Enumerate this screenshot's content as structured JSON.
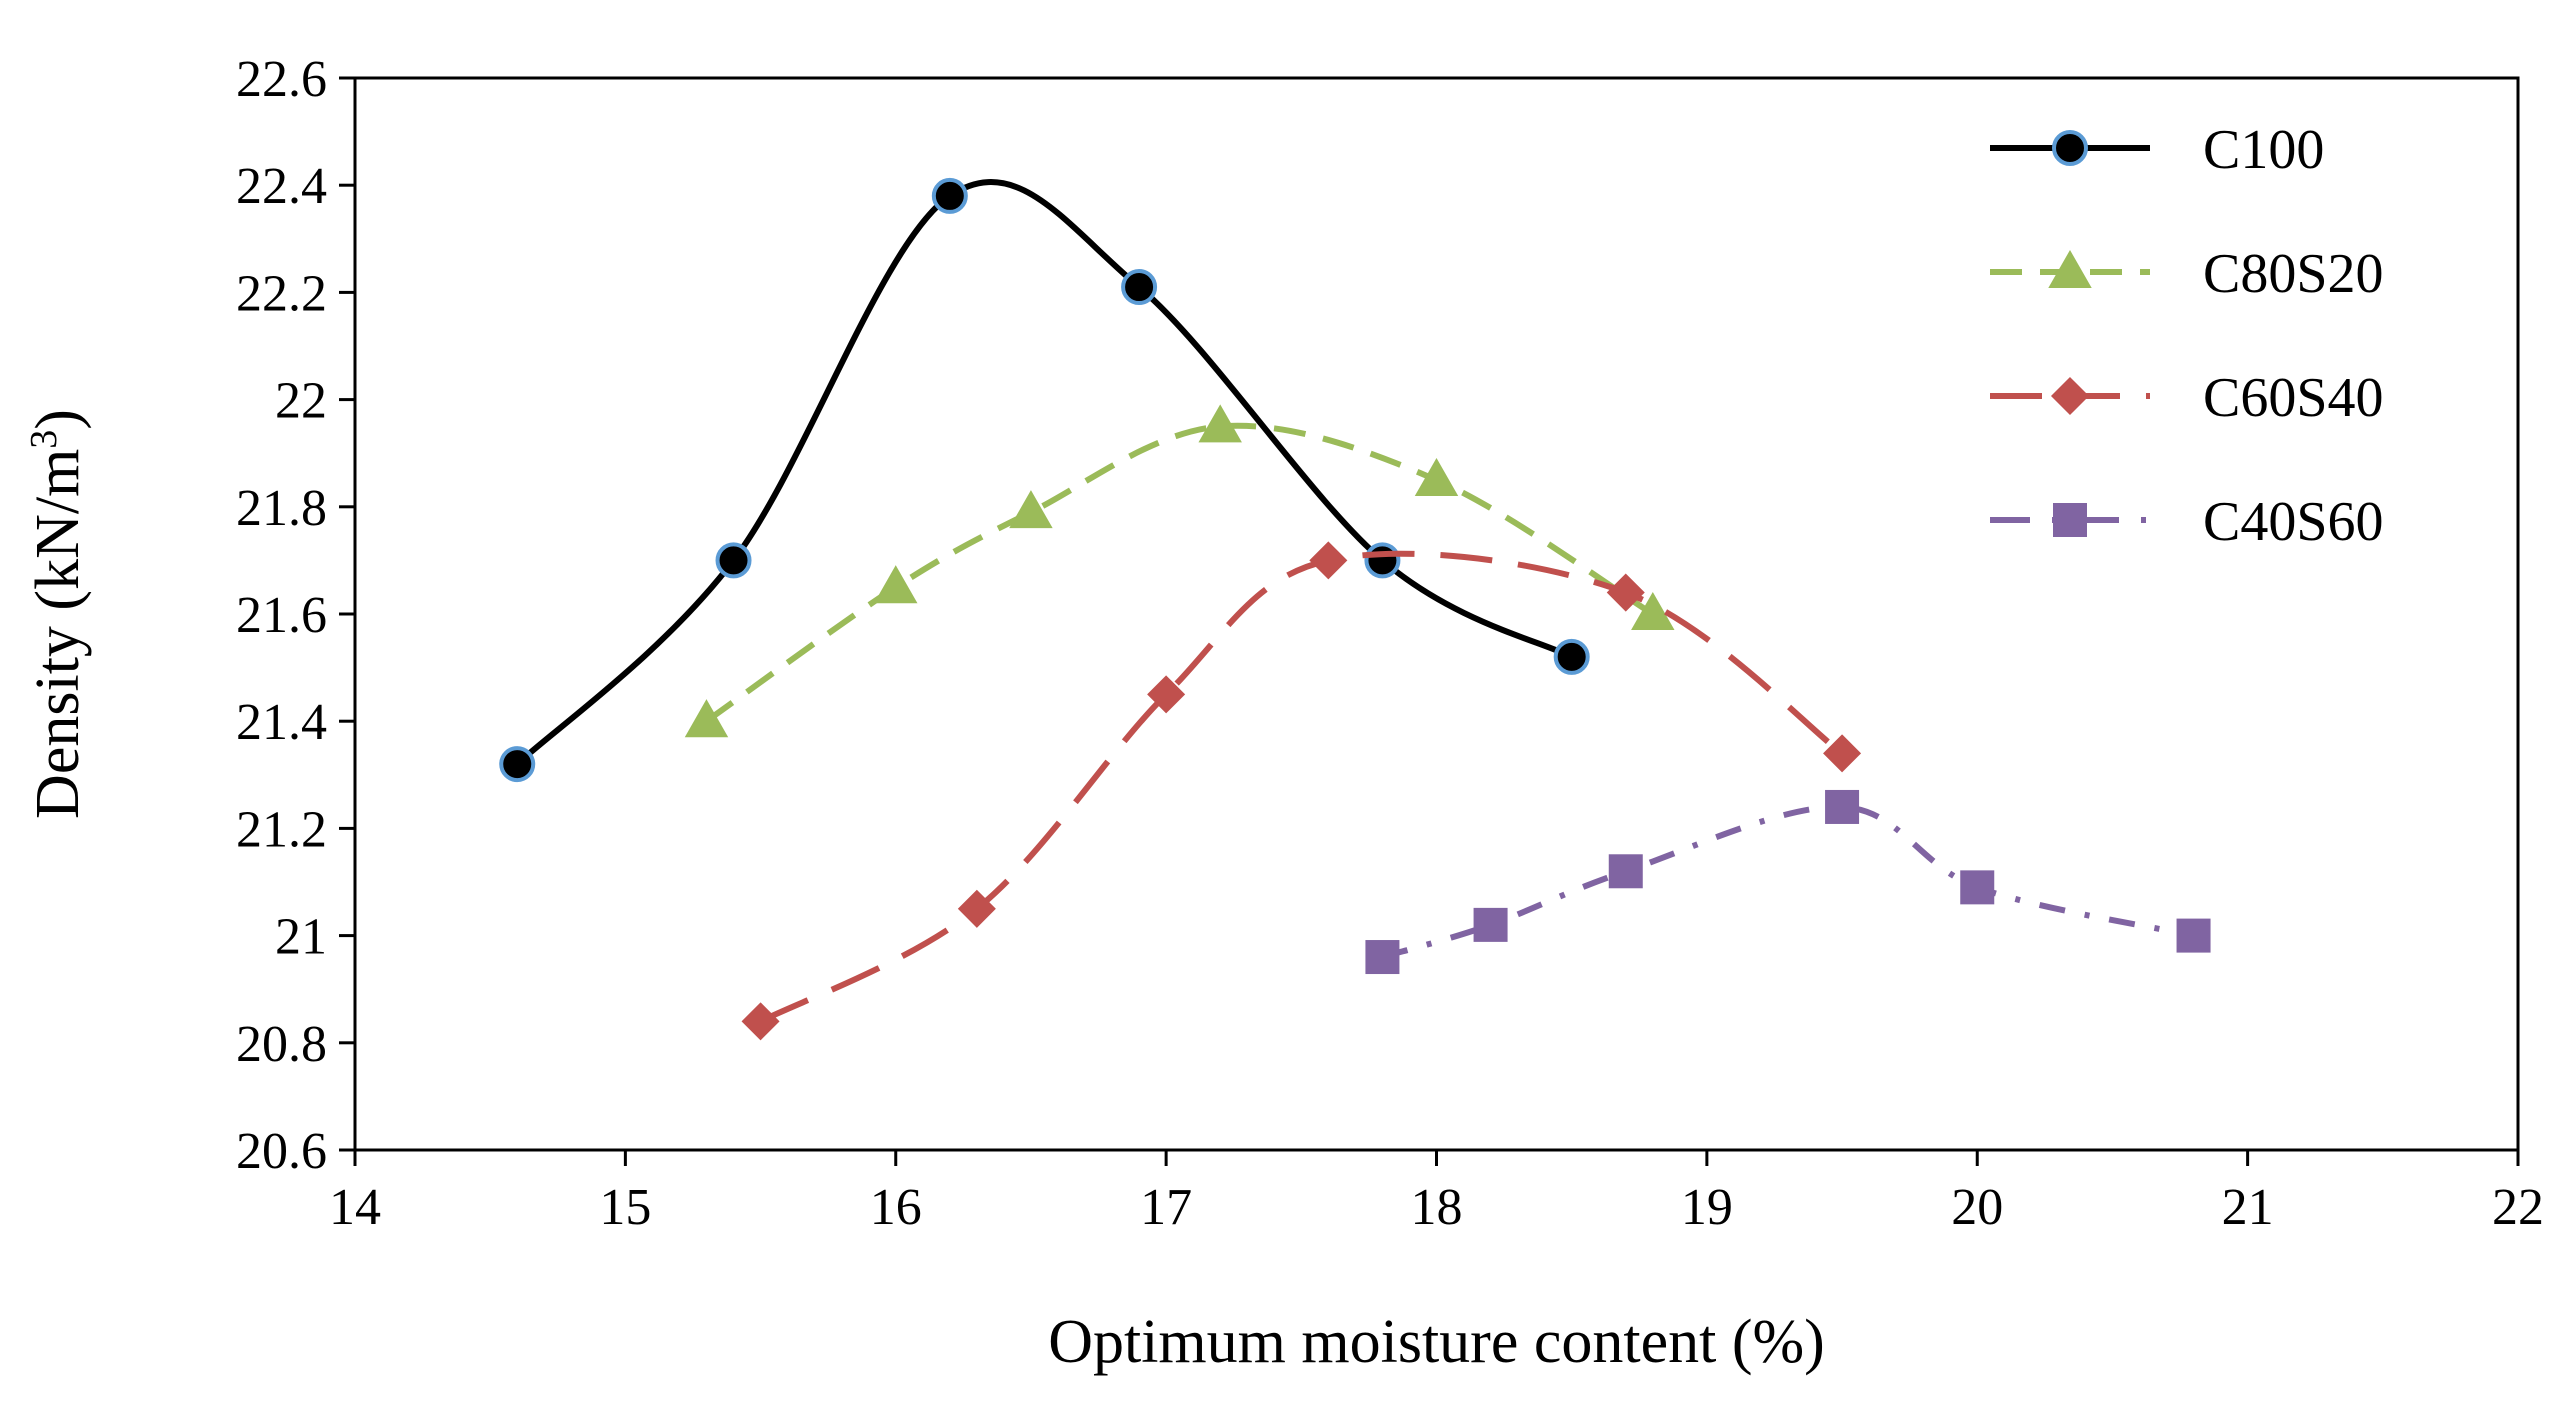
{
  "chart_data": {
    "type": "line",
    "xlabel": "Optimum moisture content (%)",
    "ylabel": "Density (kN/m",
    "ylabel_sup": "3",
    "ylabel_end": ")",
    "xlim": [
      14,
      22
    ],
    "ylim": [
      20.6,
      22.6
    ],
    "x_ticks": [
      14,
      15,
      16,
      17,
      18,
      19,
      20,
      21,
      22
    ],
    "x_tick_labels": [
      "14",
      "15",
      "16",
      "17",
      "18",
      "19",
      "20",
      "21",
      "22"
    ],
    "y_ticks": [
      20.6,
      20.8,
      21.0,
      21.2,
      21.4,
      21.6,
      21.8,
      22.0,
      22.2,
      22.4,
      22.6
    ],
    "y_tick_labels": [
      "20.6",
      "20.8",
      "21",
      "21.2",
      "21.4",
      "21.6",
      "21.8",
      "22",
      "22.2",
      "22.4",
      "22.6"
    ],
    "grid": false,
    "legend_position": "top-right",
    "series": [
      {
        "name": "C100",
        "color": "#000000",
        "marker": "circle",
        "marker_fill": "#000000",
        "marker_stroke": "#5b9bd5",
        "dash": "solid",
        "points": [
          [
            14.6,
            21.32
          ],
          [
            15.4,
            21.7
          ],
          [
            16.2,
            22.38
          ],
          [
            16.9,
            22.21
          ],
          [
            17.8,
            21.7
          ],
          [
            18.5,
            21.52
          ]
        ]
      },
      {
        "name": "C80S20",
        "color": "#9bbb59",
        "marker": "triangle",
        "marker_fill": "#9bbb59",
        "marker_stroke": "#9bbb59",
        "dash": "dash",
        "points": [
          [
            15.3,
            21.4
          ],
          [
            16.0,
            21.65
          ],
          [
            16.5,
            21.79
          ],
          [
            17.2,
            21.95
          ],
          [
            18.0,
            21.85
          ],
          [
            18.8,
            21.6
          ]
        ]
      },
      {
        "name": "C60S40",
        "color": "#c0504d",
        "marker": "diamond",
        "marker_fill": "#c0504d",
        "marker_stroke": "#c0504d",
        "dash": "longdash",
        "points": [
          [
            15.5,
            20.84
          ],
          [
            16.3,
            21.05
          ],
          [
            17.0,
            21.45
          ],
          [
            17.6,
            21.7
          ],
          [
            18.7,
            21.64
          ],
          [
            19.5,
            21.34
          ]
        ]
      },
      {
        "name": "C40S60",
        "color": "#8064a2",
        "marker": "square",
        "marker_fill": "#8064a2",
        "marker_stroke": "#8064a2",
        "dash": "dashdot",
        "points": [
          [
            17.8,
            20.96
          ],
          [
            18.2,
            21.02
          ],
          [
            18.7,
            21.12
          ],
          [
            19.5,
            21.24
          ],
          [
            20.0,
            21.09
          ],
          [
            20.8,
            21.0
          ]
        ]
      }
    ]
  }
}
